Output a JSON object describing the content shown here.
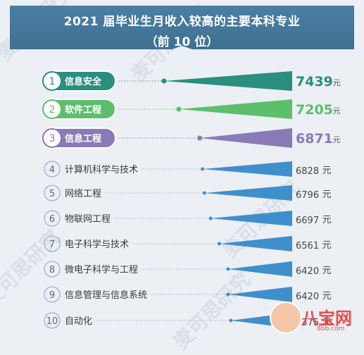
{
  "header": {
    "title": "2021 届毕业生月收入较高的主要本科专业",
    "subtitle": "（前 10 位）"
  },
  "watermark": {
    "text": "麦可思研究"
  },
  "logo": {
    "text": "八宝网",
    "url": "8bb.com"
  },
  "chart_data": {
    "type": "bar",
    "title": "2021 届毕业生月收入较高的主要本科专业（前 10 位）",
    "unit": "元",
    "categories": [
      "信息安全",
      "软件工程",
      "信息工程",
      "计算机科学与技术",
      "网络工程",
      "物联网工程",
      "电子科学与技术",
      "微电子科学与工程",
      "信息管理与信息系统",
      "自动化"
    ],
    "values": [
      7439,
      7205,
      6871,
      6828,
      6796,
      6697,
      6561,
      6420,
      6420,
      6375
    ],
    "value_labels": [
      "7439",
      "7205",
      "6871",
      "6828",
      "6796",
      "6697",
      "6561",
      "6420",
      "6420",
      "6375"
    ],
    "ranks": [
      "1",
      "2",
      "3",
      "4",
      "5",
      "6",
      "7",
      "8",
      "9",
      "10"
    ],
    "colors": {
      "rank1": "#2a8f7e",
      "rank2": "#5cbf6c",
      "rank3": "#8a7ab8",
      "others": "#3f8fcc",
      "label_text": "#3a3a3a"
    }
  }
}
